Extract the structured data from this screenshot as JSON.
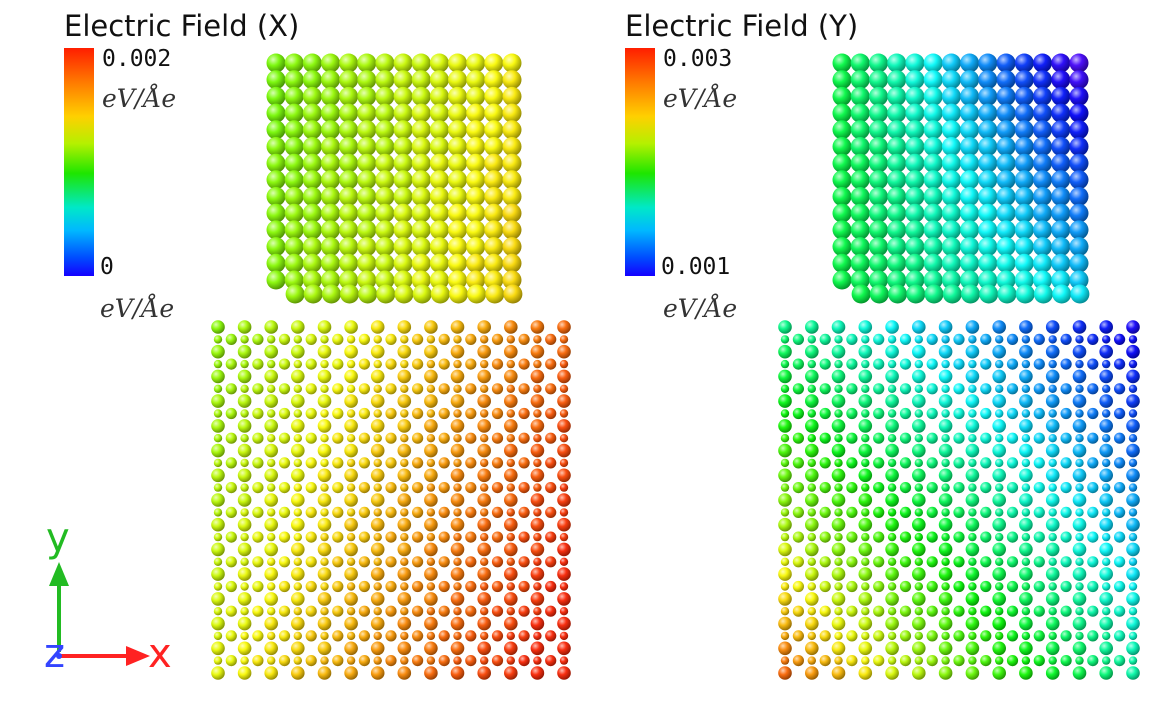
{
  "panels": [
    {
      "title": "Electric Field (X)",
      "colorbar": {
        "max_label": "0.002",
        "min_label": "0",
        "unit_top": "eV/Åe",
        "unit_bottom": "eV/Åe"
      }
    },
    {
      "title": "Electric Field (Y)",
      "colorbar": {
        "max_label": "0.003",
        "min_label": "0.001",
        "unit_top": "eV/Åe",
        "unit_bottom": "eV/Åe"
      }
    }
  ],
  "axes_triad": {
    "y_label": "y",
    "z_label": "z",
    "x_label": "x",
    "y_color": "#22bb22",
    "z_color": "#3344ff",
    "x_color": "#ff2222"
  }
}
